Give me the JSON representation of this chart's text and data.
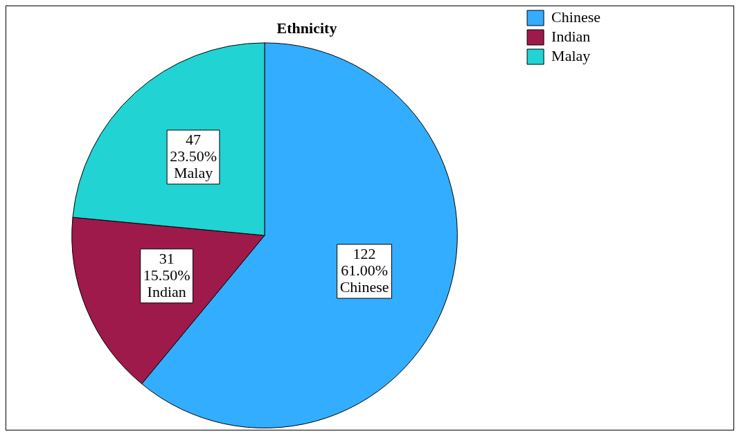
{
  "chart_data": {
    "type": "pie",
    "title": "Ethnicity",
    "categories": [
      "Chinese",
      "Indian",
      "Malay"
    ],
    "values": [
      122,
      31,
      47
    ],
    "colors": [
      "#33adff",
      "#9e1a4b",
      "#21d3d3"
    ],
    "value_labels": [
      "122\n61.00%\nChinese",
      "31\n15.50%\nIndian",
      "47\n23.50%\nMalay"
    ],
    "legend": "top right"
  }
}
